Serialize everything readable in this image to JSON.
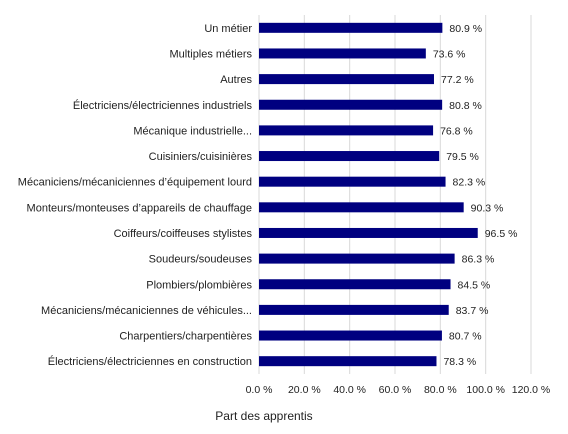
{
  "chart_data": {
    "type": "bar",
    "orientation": "horizontal",
    "categories": [
      "Un métier",
      "Multiples métiers",
      "Autres",
      "Électriciens/électriciennes industriels",
      "Mécanique industrielle...",
      "Cuisiniers/cuisinières",
      "Mécaniciens/mécaniciennes d’équipement lourd",
      "Monteurs/monteuses d’appareils de chauffage",
      "Coiffeurs/coiffeuses stylistes",
      "Soudeurs/soudeuses",
      "Plombiers/plombières",
      "Mécaniciens/mécaniciennes de véhicules...",
      "Charpentiers/charpentières",
      "Électriciens/électriciennes en construction"
    ],
    "values": [
      80.9,
      73.6,
      77.2,
      80.8,
      76.8,
      79.5,
      82.3,
      90.3,
      96.5,
      86.3,
      84.5,
      83.7,
      80.7,
      78.3
    ],
    "value_labels": [
      "80.9 %",
      "73.6 %",
      "77.2 %",
      "80.8 %",
      "76.8 %",
      "79.5 %",
      "82.3 %",
      "90.3 %",
      "96.5 %",
      "86.3 %",
      "84.5 %",
      "83.7 %",
      "80.7 %",
      "78.3 %"
    ],
    "xlim": [
      0,
      120
    ],
    "xticks": [
      "0.0 %",
      "20.0 %",
      "40.0 %",
      "60.0 %",
      "80.0 %",
      "100.0 %",
      "120.0 %"
    ],
    "xlabel": "Part des apprentis",
    "grid": true,
    "bar_color": "#000080",
    "grid_color": "#d9d9d9"
  }
}
